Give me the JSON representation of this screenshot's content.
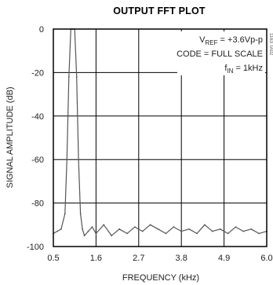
{
  "chart_data": {
    "type": "line",
    "title": "OUTPUT FFT PLOT",
    "xlabel": "FREQUENCY (kHz)",
    "ylabel": "SIGNAL AMPLITUDE (dB)",
    "xlim": [
      0.5,
      6.0
    ],
    "ylim": [
      -100,
      0
    ],
    "x_ticks": [
      "0.5",
      "1.6",
      "2.7",
      "3.8",
      "4.9",
      "6.0"
    ],
    "y_ticks": [
      "0",
      "-20",
      "-40",
      "-60",
      "-80",
      "-100"
    ],
    "grid": true,
    "annotations": [
      {
        "text": "V",
        "sub": "REF",
        "rest": " = +3.6Vp-p"
      },
      {
        "text": "CODE = FULL SCALE"
      },
      {
        "text": "f",
        "sub": "IN",
        "rest": " = 1kHz"
      }
    ],
    "figure_code": "1163 TA02",
    "series": [
      {
        "x": [
          0.5,
          0.6,
          0.7,
          0.8,
          0.85,
          0.9,
          0.95,
          1.0,
          1.05,
          1.1,
          1.15,
          1.2,
          1.25,
          1.3,
          1.4,
          1.5,
          1.6,
          1.8,
          2.0,
          2.2,
          2.4,
          2.6,
          2.8,
          3.0,
          3.2,
          3.4,
          3.6,
          3.8,
          4.0,
          4.2,
          4.4,
          4.6,
          4.8,
          5.0,
          5.2,
          5.4,
          5.6,
          5.8,
          6.0
        ],
        "y": [
          -94,
          -93,
          -92,
          -85,
          -60,
          -22,
          0,
          0,
          0,
          -22,
          -60,
          -85,
          -92,
          -95,
          -93,
          -91,
          -94,
          -90,
          -95,
          -92,
          -94,
          -91,
          -93,
          -90,
          -92,
          -94,
          -91,
          -93,
          -92,
          -94,
          -90,
          -93,
          -92,
          -94,
          -91,
          -93,
          -92,
          -94,
          -93
        ]
      }
    ],
    "colors": {
      "trace": "#555555",
      "grid": "#000000",
      "frame": "#000000"
    }
  }
}
